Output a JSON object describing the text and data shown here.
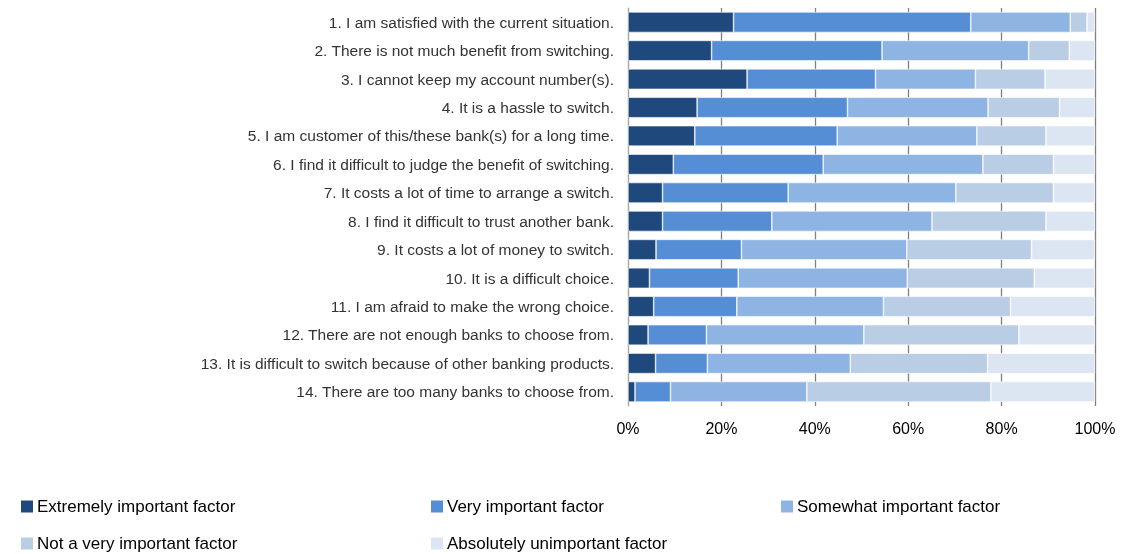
{
  "chart_data": {
    "type": "bar",
    "orientation": "horizontal",
    "stacked": true,
    "categories": [
      "1. I am satisfied with the current situation.",
      "2. There is not much benefit from switching.",
      "3. I cannot keep my account number(s).",
      "4. It is a hassle to switch.",
      "5. I am customer of this/these bank(s) for a long time.",
      "6. I find it difficult to judge the benefit of switching.",
      "7. It costs a lot of time to arrange a switch.",
      "8. I find it difficult to trust another bank.",
      "9. It costs a lot of money to switch.",
      "10. It is a difficult choice.",
      "11. I am afraid to make the wrong choice.",
      "12. There are not enough banks to choose from.",
      "13. It is difficult to switch because of other banking products.",
      "14. There are too many banks to choose from."
    ],
    "series": [
      {
        "name": "Extremely important factor",
        "color": "#1f497d",
        "values": [
          22.6,
          17.9,
          25.5,
          14.8,
          14.3,
          9.7,
          7.4,
          7.4,
          6.0,
          4.6,
          5.5,
          4.3,
          5.9,
          1.5
        ]
      },
      {
        "name": "Very important factor",
        "color": "#558ed5",
        "values": [
          50.8,
          36.5,
          27.5,
          32.2,
          30.5,
          32.1,
          26.9,
          23.4,
          18.3,
          19.0,
          17.8,
          12.5,
          11.1,
          7.6
        ]
      },
      {
        "name": "Somewhat important factor",
        "color": "#8eb4e3",
        "values": [
          21.3,
          31.4,
          21.4,
          30.1,
          29.9,
          34.2,
          35.9,
          34.3,
          35.4,
          36.2,
          31.4,
          33.7,
          30.6,
          29.2
        ]
      },
      {
        "name": "Not a very important factor",
        "color": "#b9cde5",
        "values": [
          3.6,
          8.7,
          14.9,
          15.3,
          14.8,
          15.1,
          20.9,
          24.4,
          26.7,
          27.2,
          27.2,
          33.2,
          29.4,
          39.4
        ]
      },
      {
        "name": "Absolutely unimportant factor",
        "color": "#dce6f2",
        "values": [
          1.7,
          5.5,
          10.7,
          7.6,
          10.5,
          8.9,
          8.9,
          10.5,
          13.6,
          13.0,
          18.1,
          16.3,
          23.0,
          22.3
        ]
      }
    ],
    "xlim": [
      0,
      100
    ],
    "xticks": [
      {
        "value": 0,
        "label": "0%"
      },
      {
        "value": 20,
        "label": "20%"
      },
      {
        "value": 40,
        "label": "40%"
      },
      {
        "value": 60,
        "label": "60%"
      },
      {
        "value": 80,
        "label": "80%"
      },
      {
        "value": 100,
        "label": "100%"
      }
    ],
    "grid": "x",
    "legend": "bottom"
  }
}
